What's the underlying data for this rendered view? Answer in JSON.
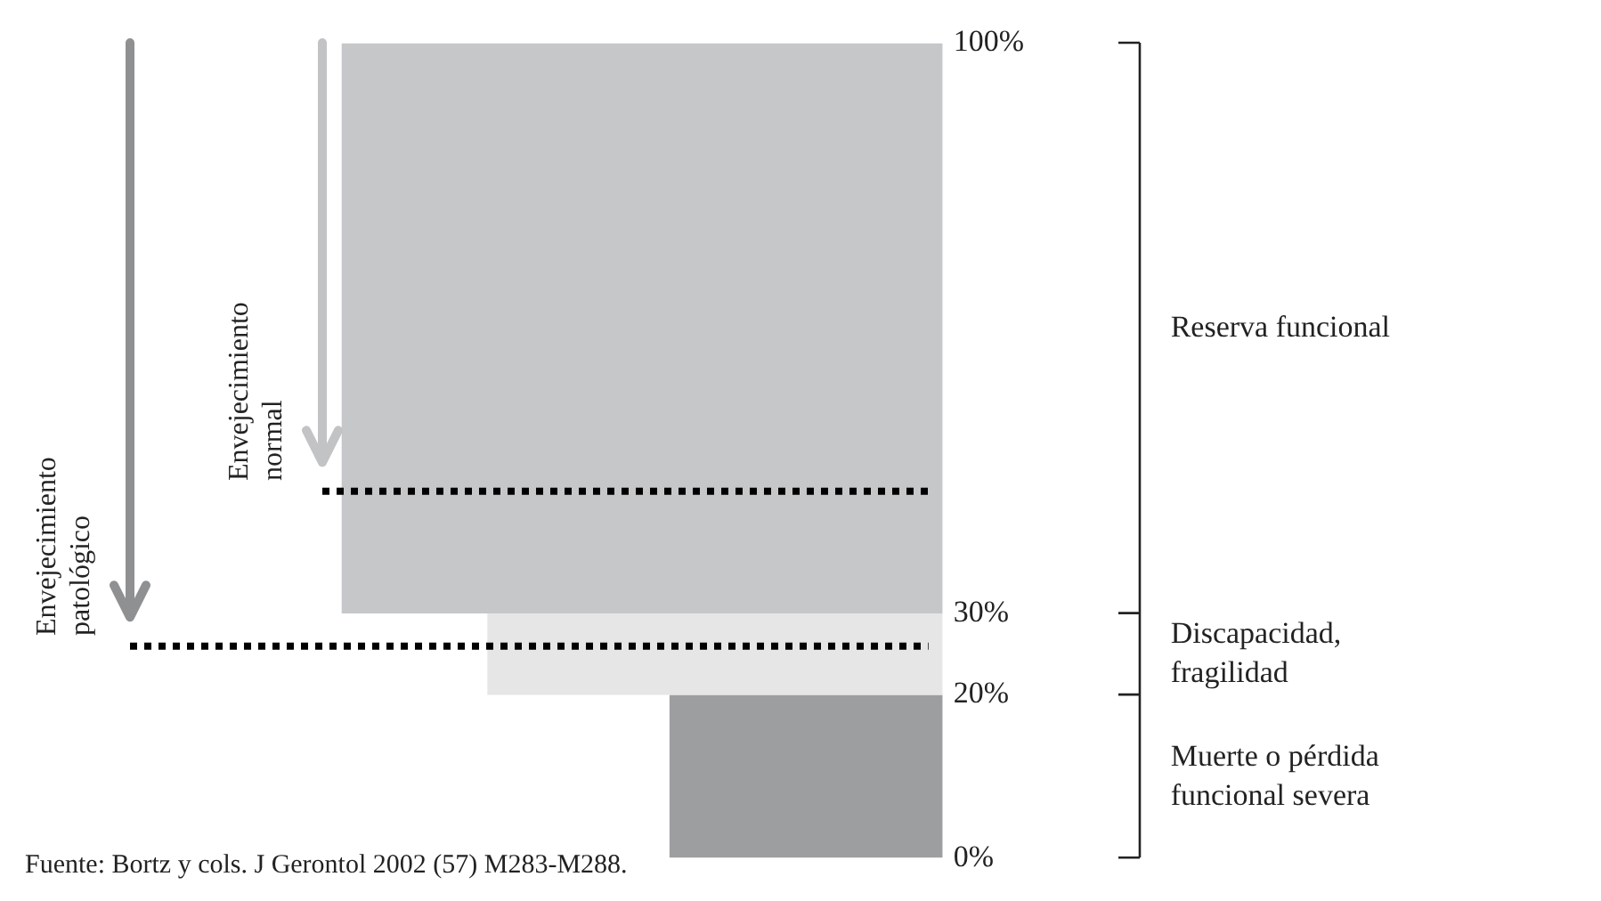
{
  "chart_data": {
    "type": "bar",
    "categories": [
      null
    ],
    "series": [
      {
        "color": "#c6c7c9",
        "values": [
          70
        ],
        "base": [
          30
        ]
      },
      {
        "color": "#e6e6e6",
        "values": [
          10
        ],
        "base": [
          20
        ]
      },
      {
        "color": "#9d9ea0",
        "values": [
          20
        ],
        "base": [
          0
        ]
      }
    ],
    "ylim": [
      0,
      100
    ],
    "yticks": [
      {
        "value": 0,
        "label": "0%"
      },
      {
        "value": 20,
        "label": "20%"
      },
      {
        "value": 30,
        "label": "30%"
      },
      {
        "value": 100,
        "label": "100%"
      }
    ],
    "grid": false,
    "legend": false,
    "ref_lines": [
      {
        "axis": "y",
        "value": 45,
        "label": "Envejecimiento normal",
        "color": "#000000",
        "line_style": "dotted"
      },
      {
        "axis": "y",
        "value": 26,
        "label": "Envejecimiento patológico",
        "color": "#000000",
        "line_style": "dotted"
      }
    ],
    "annotations": [
      "Reserva funcional",
      "Discapacidad, fragilidad",
      "Muerte o pérdida funcional severa",
      "Fuente: Bortz y cols. J Gerontol 2002 (57) M283-M288."
    ]
  }
}
